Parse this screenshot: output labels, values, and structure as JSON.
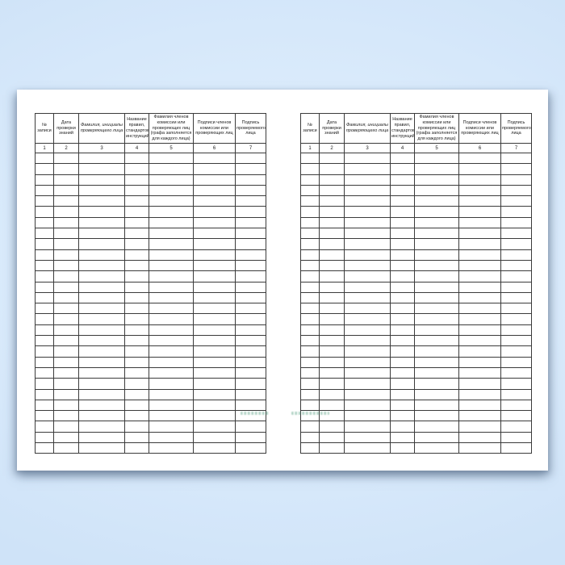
{
  "scene": {
    "background_color": "#d9eafb",
    "sheet_color": "#ffffff",
    "border_color": "#3b3b3b",
    "watermark_color": "#4a9a78"
  },
  "journal_table": {
    "columns": [
      {
        "number": "1",
        "label": "№ записи",
        "italic": false
      },
      {
        "number": "2",
        "label": "Дата проверки знаний",
        "italic": false
      },
      {
        "number": "3",
        "label": "Фамилия, инициалы проверяющего лица",
        "italic": true
      },
      {
        "number": "4",
        "label": "Название правил, стандартов, инструкций",
        "italic": false
      },
      {
        "number": "5",
        "label": "Фамилия членов комиссии или проверяющих лиц (графа заполняется для каждого лица)",
        "italic": false
      },
      {
        "number": "6",
        "label": "Подписи членов комиссии или проверяющих лиц",
        "italic": false
      },
      {
        "number": "7",
        "label": "Подпись проверяемого лица",
        "italic": false
      }
    ],
    "empty_row_count": 28,
    "empty_cell_value": ""
  },
  "spread": {
    "sides": [
      "left",
      "right"
    ]
  }
}
